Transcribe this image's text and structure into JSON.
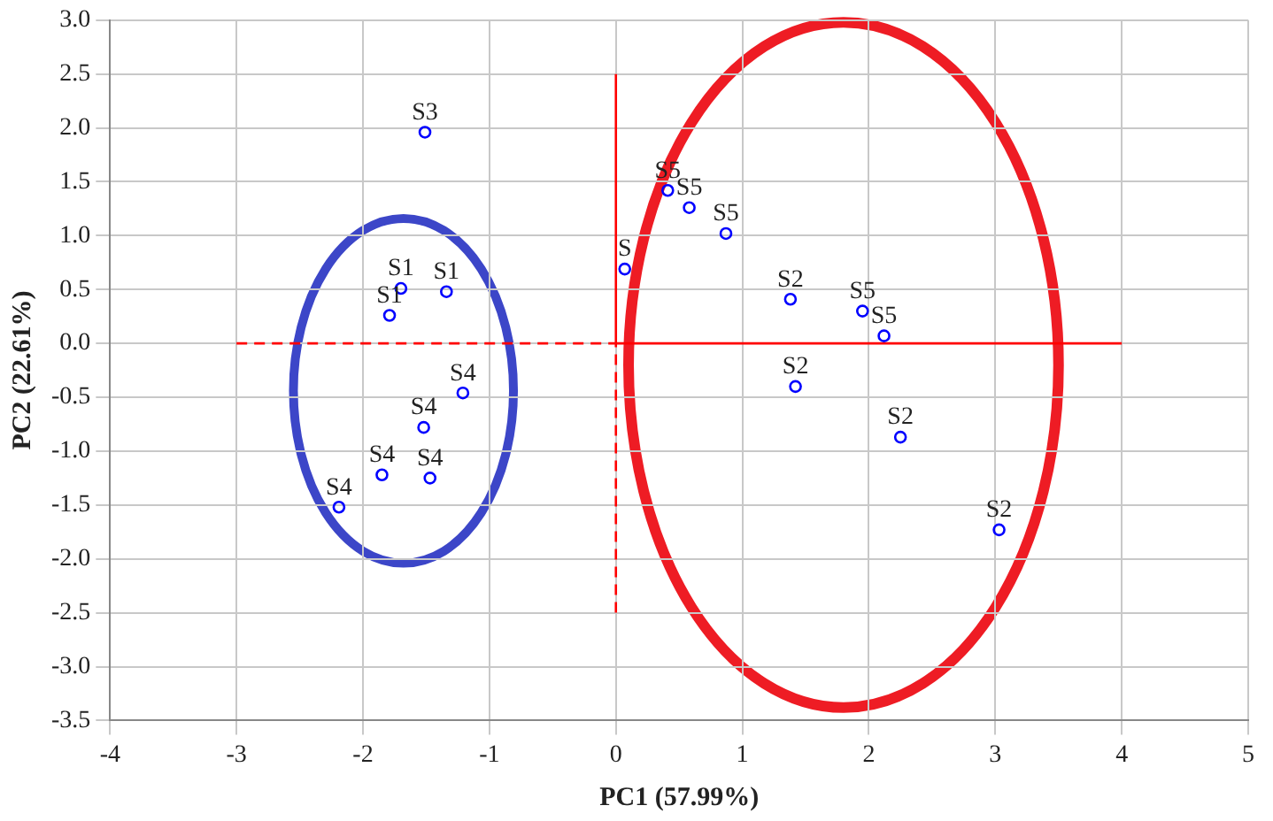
{
  "chart_data": {
    "type": "scatter",
    "xlabel": "PC1 (57.99%)",
    "ylabel": "PC2 (22.61%)",
    "grid": true,
    "series": [
      {
        "color": "#0000ff",
        "marker": "circle",
        "x": [
          -1.51,
          -1.7,
          -1.34,
          -1.79,
          -1.21,
          -1.52,
          -1.85,
          -1.47,
          -2.19,
          0.07,
          0.41,
          0.58,
          0.87,
          1.38,
          1.95,
          2.12,
          1.42,
          2.25,
          3.03
        ],
        "values": [
          1.96,
          0.51,
          0.48,
          0.26,
          -0.46,
          -0.78,
          -1.22,
          -1.25,
          -1.52,
          0.69,
          1.42,
          1.26,
          1.02,
          0.41,
          0.3,
          0.07,
          -0.4,
          -0.87,
          -1.73
        ]
      },
      {
        "type": "line",
        "color": "#ff0000",
        "marker": "none",
        "line_style": "dashed",
        "x": [
          -3,
          0
        ],
        "values": [
          0,
          0
        ]
      },
      {
        "type": "line",
        "color": "#ff0000",
        "marker": "none",
        "line_style": "solid",
        "x": [
          0,
          4
        ],
        "values": [
          0,
          0
        ]
      },
      {
        "type": "line",
        "color": "#ff0000",
        "marker": "none",
        "line_style": "dashed",
        "x": [
          0,
          0
        ],
        "values": [
          -2.5,
          0
        ]
      },
      {
        "type": "line",
        "color": "#ff0000",
        "marker": "none",
        "line_style": "solid",
        "x": [
          0,
          0
        ],
        "values": [
          0,
          2.5
        ]
      }
    ],
    "xlim": [
      -4,
      5
    ],
    "xticks": [
      -4,
      -3,
      -2,
      -1,
      0,
      1,
      2,
      3,
      4,
      5
    ],
    "ylim": [
      -3.5,
      3
    ],
    "yticks": [
      {
        "value": -3.5,
        "label": "-3.5"
      },
      {
        "value": -3,
        "label": "-3.0"
      },
      {
        "value": -2.5,
        "label": "-2.5"
      },
      {
        "value": -2,
        "label": "-2.0"
      },
      {
        "value": -1.5,
        "label": "-1.5"
      },
      {
        "value": -1,
        "label": "-1.0"
      },
      {
        "value": -0.5,
        "label": "-0.5"
      },
      {
        "value": 0,
        "label": "0.0"
      },
      {
        "value": 0.5,
        "label": "0.5"
      },
      {
        "value": 1,
        "label": "1.0"
      },
      {
        "value": 1.5,
        "label": "1.5"
      },
      {
        "value": 2,
        "label": "2.0"
      },
      {
        "value": 2.5,
        "label": "2.5"
      },
      {
        "value": 3,
        "label": "3.0"
      }
    ],
    "annotations": [
      {
        "text": "S3",
        "x": -1.51,
        "y": 1.96
      },
      {
        "text": "S1",
        "x": -1.7,
        "y": 0.51
      },
      {
        "text": "S1",
        "x": -1.34,
        "y": 0.48
      },
      {
        "text": "S1",
        "x": -1.79,
        "y": 0.26
      },
      {
        "text": "S4",
        "x": -1.21,
        "y": -0.46
      },
      {
        "text": "S4",
        "x": -1.52,
        "y": -0.78
      },
      {
        "text": "S4",
        "x": -1.85,
        "y": -1.22
      },
      {
        "text": "S4",
        "x": -1.47,
        "y": -1.25
      },
      {
        "text": "S4",
        "x": -2.19,
        "y": -1.52
      },
      {
        "text": "S",
        "x": 0.07,
        "y": 0.69
      },
      {
        "text": "S5",
        "x": 0.41,
        "y": 1.42
      },
      {
        "text": "S5",
        "x": 0.58,
        "y": 1.26
      },
      {
        "text": "S5",
        "x": 0.87,
        "y": 1.02
      },
      {
        "text": "S2",
        "x": 1.38,
        "y": 0.41
      },
      {
        "text": "S5",
        "x": 1.95,
        "y": 0.3
      },
      {
        "text": "S5",
        "x": 2.12,
        "y": 0.07
      },
      {
        "text": "S2",
        "x": 1.42,
        "y": -0.4
      },
      {
        "text": "S2",
        "x": 2.25,
        "y": -0.87
      },
      {
        "text": "S2",
        "x": 3.03,
        "y": -1.73
      }
    ]
  }
}
